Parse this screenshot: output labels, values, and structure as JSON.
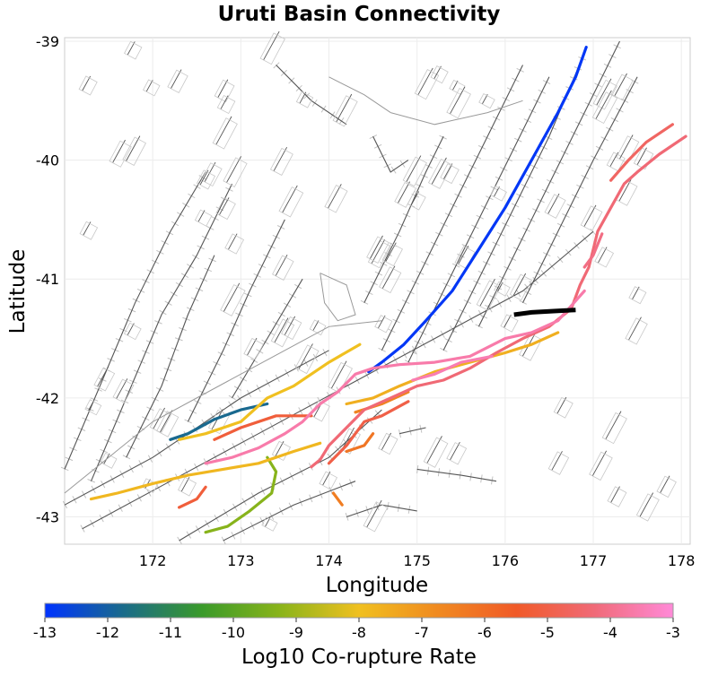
{
  "title": "Uruti Basin Connectivity",
  "xlabel": "Longitude",
  "ylabel": "Latitude",
  "lon_range": [
    171.0,
    178.1
  ],
  "lat_range": [
    -43.23,
    -38.97
  ],
  "x_ticks": [
    "172",
    "173",
    "174",
    "175",
    "176",
    "177",
    "178"
  ],
  "y_ticks": [
    "-39",
    "-40",
    "-41",
    "-42",
    "-43"
  ],
  "colorbar": {
    "label": "Log10 Co-rupture Rate",
    "ticks": [
      "-13",
      "-12",
      "-11",
      "-10",
      "-9",
      "-8",
      "-7",
      "-6",
      "-5",
      "-4",
      "-3"
    ],
    "range": [
      -13,
      -3
    ],
    "stops": [
      "#0033ff",
      "#1a6b8a",
      "#3a9a2a",
      "#8ab41a",
      "#f0c020",
      "#f08a20",
      "#f05a28",
      "#f06a78",
      "#ff8ad8"
    ]
  },
  "selected_fault": {
    "name": "Uruti Basin",
    "color": "#000000"
  },
  "ruptures": [
    {
      "rate": -12.9,
      "pts": [
        [
          176.92,
          -39.05
        ],
        [
          176.8,
          -39.3
        ],
        [
          176.6,
          -39.6
        ],
        [
          176.3,
          -40.0
        ],
        [
          176.0,
          -40.4
        ],
        [
          175.7,
          -40.75
        ],
        [
          175.4,
          -41.1
        ],
        [
          175.1,
          -41.35
        ],
        [
          174.85,
          -41.55
        ],
        [
          174.6,
          -41.7
        ],
        [
          174.45,
          -41.78
        ]
      ]
    },
    {
      "rate": -11.8,
      "pts": [
        [
          173.3,
          -42.05
        ],
        [
          173.0,
          -42.1
        ],
        [
          172.7,
          -42.18
        ],
        [
          172.4,
          -42.3
        ],
        [
          172.2,
          -42.35
        ]
      ]
    },
    {
      "rate": -9.3,
      "pts": [
        [
          173.3,
          -42.5
        ],
        [
          173.4,
          -42.62
        ],
        [
          173.35,
          -42.8
        ],
        [
          173.1,
          -42.95
        ],
        [
          172.85,
          -43.08
        ],
        [
          172.6,
          -43.13
        ]
      ]
    },
    {
      "rate": -8.0,
      "pts": [
        [
          174.35,
          -41.55
        ],
        [
          174.0,
          -41.7
        ],
        [
          173.6,
          -41.9
        ],
        [
          173.3,
          -42.0
        ],
        [
          173.0,
          -42.2
        ],
        [
          172.6,
          -42.3
        ],
        [
          172.3,
          -42.35
        ]
      ]
    },
    {
      "rate": -7.8,
      "pts": [
        [
          173.9,
          -42.38
        ],
        [
          173.6,
          -42.45
        ],
        [
          173.2,
          -42.55
        ],
        [
          172.8,
          -42.6
        ],
        [
          172.4,
          -42.65
        ],
        [
          172.0,
          -42.72
        ],
        [
          171.6,
          -42.8
        ],
        [
          171.3,
          -42.85
        ]
      ]
    },
    {
      "rate": -7.6,
      "pts": [
        [
          176.6,
          -41.45
        ],
        [
          176.3,
          -41.55
        ],
        [
          176.0,
          -41.62
        ],
        [
          175.6,
          -41.7
        ],
        [
          175.2,
          -41.78
        ],
        [
          174.8,
          -41.9
        ],
        [
          174.5,
          -42.0
        ],
        [
          174.2,
          -42.05
        ]
      ]
    },
    {
      "rate": -6.6,
      "pts": [
        [
          174.9,
          -41.95
        ],
        [
          174.6,
          -42.05
        ],
        [
          174.3,
          -42.12
        ]
      ]
    },
    {
      "rate": -6.4,
      "pts": [
        [
          174.15,
          -42.9
        ],
        [
          174.05,
          -42.8
        ]
      ]
    },
    {
      "rate": -6.2,
      "pts": [
        [
          174.5,
          -42.3
        ],
        [
          174.4,
          -42.4
        ],
        [
          174.2,
          -42.45
        ]
      ]
    },
    {
      "rate": -5.2,
      "pts": [
        [
          173.8,
          -42.15
        ],
        [
          173.4,
          -42.15
        ],
        [
          173.0,
          -42.25
        ],
        [
          172.7,
          -42.35
        ]
      ]
    },
    {
      "rate": -5.2,
      "pts": [
        [
          172.6,
          -42.75
        ],
        [
          172.5,
          -42.85
        ],
        [
          172.3,
          -42.92
        ]
      ]
    },
    {
      "rate": -5.0,
      "pts": [
        [
          174.9,
          -42.03
        ],
        [
          174.6,
          -42.15
        ],
        [
          174.4,
          -42.2
        ],
        [
          174.2,
          -42.4
        ],
        [
          174.0,
          -42.55
        ]
      ]
    },
    {
      "rate": -4.6,
      "pts": [
        [
          177.9,
          -39.7
        ],
        [
          177.6,
          -39.85
        ],
        [
          177.4,
          -40.0
        ],
        [
          177.2,
          -40.17
        ]
      ]
    },
    {
      "rate": -4.3,
      "pts": [
        [
          178.05,
          -39.8
        ],
        [
          177.75,
          -39.95
        ],
        [
          177.5,
          -40.1
        ],
        [
          177.35,
          -40.2
        ],
        [
          177.2,
          -40.4
        ],
        [
          177.05,
          -40.6
        ],
        [
          176.95,
          -40.9
        ],
        [
          176.85,
          -41.05
        ],
        [
          176.75,
          -41.25
        ],
        [
          176.5,
          -41.4
        ],
        [
          176.2,
          -41.5
        ],
        [
          175.9,
          -41.62
        ],
        [
          175.6,
          -41.75
        ],
        [
          175.3,
          -41.85
        ],
        [
          175.0,
          -41.9
        ],
        [
          174.7,
          -42.0
        ],
        [
          174.4,
          -42.1
        ],
        [
          174.2,
          -42.25
        ],
        [
          174.0,
          -42.4
        ],
        [
          173.9,
          -42.52
        ],
        [
          173.8,
          -42.58
        ]
      ]
    },
    {
      "rate": -4.1,
      "pts": [
        [
          177.1,
          -40.62
        ],
        [
          177.0,
          -40.8
        ],
        [
          176.9,
          -40.9
        ]
      ]
    },
    {
      "rate": -3.6,
      "pts": [
        [
          176.9,
          -41.1
        ],
        [
          176.6,
          -41.35
        ],
        [
          176.3,
          -41.45
        ],
        [
          176.0,
          -41.5
        ],
        [
          175.6,
          -41.65
        ],
        [
          175.2,
          -41.7
        ],
        [
          174.8,
          -41.72
        ],
        [
          174.5,
          -41.75
        ],
        [
          174.3,
          -41.8
        ],
        [
          174.1,
          -41.95
        ],
        [
          173.9,
          -42.05
        ],
        [
          173.7,
          -42.2
        ],
        [
          173.5,
          -42.3
        ],
        [
          173.2,
          -42.42
        ],
        [
          172.9,
          -42.5
        ],
        [
          172.6,
          -42.55
        ]
      ]
    },
    {
      "rate": -3.5,
      "pts": [
        [
          175.85,
          -41.65
        ],
        [
          175.5,
          -41.7
        ],
        [
          175.2,
          -41.8
        ],
        [
          174.95,
          -41.85
        ]
      ]
    }
  ]
}
